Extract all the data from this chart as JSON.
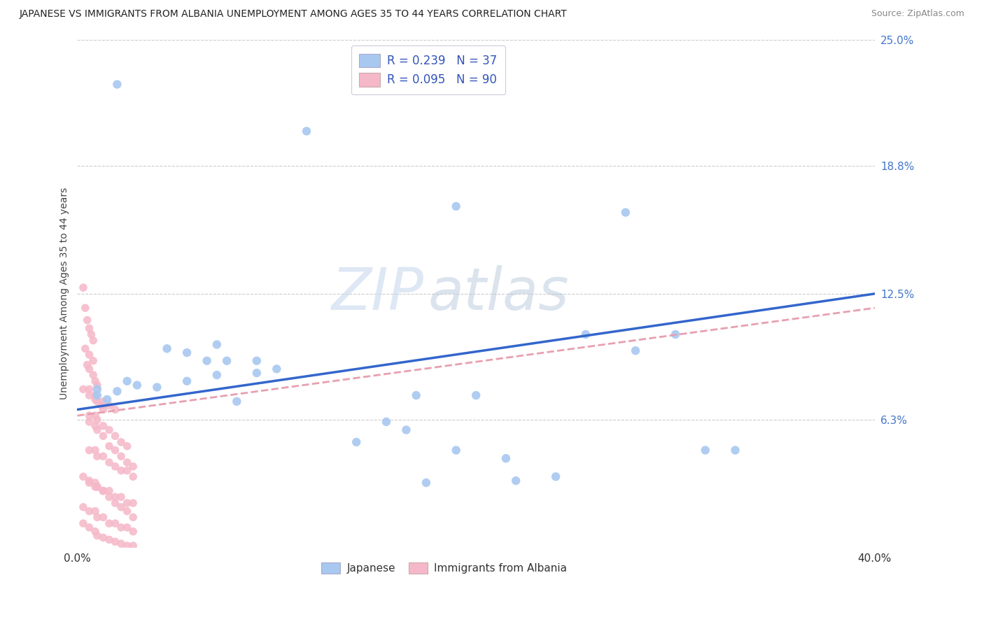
{
  "title": "JAPANESE VS IMMIGRANTS FROM ALBANIA UNEMPLOYMENT AMONG AGES 35 TO 44 YEARS CORRELATION CHART",
  "source": "Source: ZipAtlas.com",
  "ylabel": "Unemployment Among Ages 35 to 44 years",
  "xlim": [
    0.0,
    0.4
  ],
  "ylim": [
    0.0,
    0.25
  ],
  "ytick_values": [
    0.0,
    0.063,
    0.125,
    0.188,
    0.25
  ],
  "ytick_labels": [
    "",
    "6.3%",
    "12.5%",
    "18.8%",
    "25.0%"
  ],
  "xtick_values": [
    0.0,
    0.05,
    0.1,
    0.15,
    0.2,
    0.25,
    0.3,
    0.35,
    0.4
  ],
  "watermark_zip": "ZIP",
  "watermark_atlas": "atlas",
  "legend_line1": "R = 0.239   N = 37",
  "legend_line2": "R = 0.095   N = 90",
  "japanese_color": "#a8c8f0",
  "albania_color": "#f5b8c8",
  "japanese_line_color": "#3366cc",
  "albania_line_color": "#e8a0b0",
  "background_color": "#ffffff",
  "grid_color": "#cccccc",
  "jp_line_y0": 0.068,
  "jp_line_y1": 0.125,
  "alb_line_y0": 0.065,
  "alb_line_y1": 0.118,
  "japanese_scatter_x": [
    0.02,
    0.115,
    0.19,
    0.275,
    0.28,
    0.255,
    0.3,
    0.07,
    0.045,
    0.055,
    0.065,
    0.075,
    0.09,
    0.09,
    0.1,
    0.07,
    0.055,
    0.025,
    0.03,
    0.04,
    0.01,
    0.02,
    0.01,
    0.015,
    0.08,
    0.17,
    0.2,
    0.155,
    0.165,
    0.14,
    0.19,
    0.33,
    0.315,
    0.215,
    0.24,
    0.175,
    0.22
  ],
  "japanese_scatter_y": [
    0.228,
    0.205,
    0.168,
    0.165,
    0.097,
    0.105,
    0.105,
    0.1,
    0.098,
    0.096,
    0.092,
    0.092,
    0.092,
    0.086,
    0.088,
    0.085,
    0.082,
    0.082,
    0.08,
    0.079,
    0.078,
    0.077,
    0.075,
    0.073,
    0.072,
    0.075,
    0.075,
    0.062,
    0.058,
    0.052,
    0.048,
    0.048,
    0.048,
    0.044,
    0.035,
    0.032,
    0.033
  ],
  "albania_scatter_x": [
    0.003,
    0.004,
    0.005,
    0.006,
    0.007,
    0.008,
    0.004,
    0.006,
    0.008,
    0.005,
    0.006,
    0.008,
    0.009,
    0.01,
    0.006,
    0.009,
    0.01,
    0.012,
    0.013,
    0.006,
    0.009,
    0.01,
    0.013,
    0.016,
    0.019,
    0.022,
    0.025,
    0.006,
    0.009,
    0.01,
    0.013,
    0.016,
    0.019,
    0.022,
    0.025,
    0.028,
    0.006,
    0.009,
    0.01,
    0.013,
    0.016,
    0.019,
    0.022,
    0.025,
    0.028,
    0.003,
    0.006,
    0.009,
    0.01,
    0.013,
    0.016,
    0.019,
    0.022,
    0.025,
    0.028,
    0.003,
    0.006,
    0.009,
    0.013,
    0.016,
    0.019,
    0.006,
    0.009,
    0.01,
    0.013,
    0.016,
    0.019,
    0.022,
    0.025,
    0.028,
    0.003,
    0.006,
    0.009,
    0.01,
    0.013,
    0.016,
    0.019,
    0.022,
    0.025,
    0.028,
    0.003,
    0.006,
    0.009,
    0.01,
    0.013,
    0.016,
    0.019,
    0.022,
    0.025,
    0.028
  ],
  "albania_scatter_y": [
    0.128,
    0.118,
    0.112,
    0.108,
    0.105,
    0.102,
    0.098,
    0.095,
    0.092,
    0.09,
    0.088,
    0.085,
    0.082,
    0.08,
    0.078,
    0.075,
    0.072,
    0.07,
    0.068,
    0.065,
    0.065,
    0.063,
    0.06,
    0.058,
    0.055,
    0.052,
    0.05,
    0.048,
    0.048,
    0.045,
    0.045,
    0.042,
    0.04,
    0.038,
    0.038,
    0.035,
    0.032,
    0.03,
    0.03,
    0.028,
    0.028,
    0.025,
    0.025,
    0.022,
    0.022,
    0.02,
    0.018,
    0.018,
    0.015,
    0.015,
    0.012,
    0.012,
    0.01,
    0.01,
    0.008,
    0.078,
    0.075,
    0.073,
    0.072,
    0.07,
    0.068,
    0.062,
    0.06,
    0.058,
    0.055,
    0.05,
    0.048,
    0.045,
    0.042,
    0.04,
    0.035,
    0.033,
    0.032,
    0.03,
    0.028,
    0.025,
    0.022,
    0.02,
    0.018,
    0.015,
    0.012,
    0.01,
    0.008,
    0.006,
    0.005,
    0.004,
    0.003,
    0.002,
    0.001,
    0.001
  ]
}
